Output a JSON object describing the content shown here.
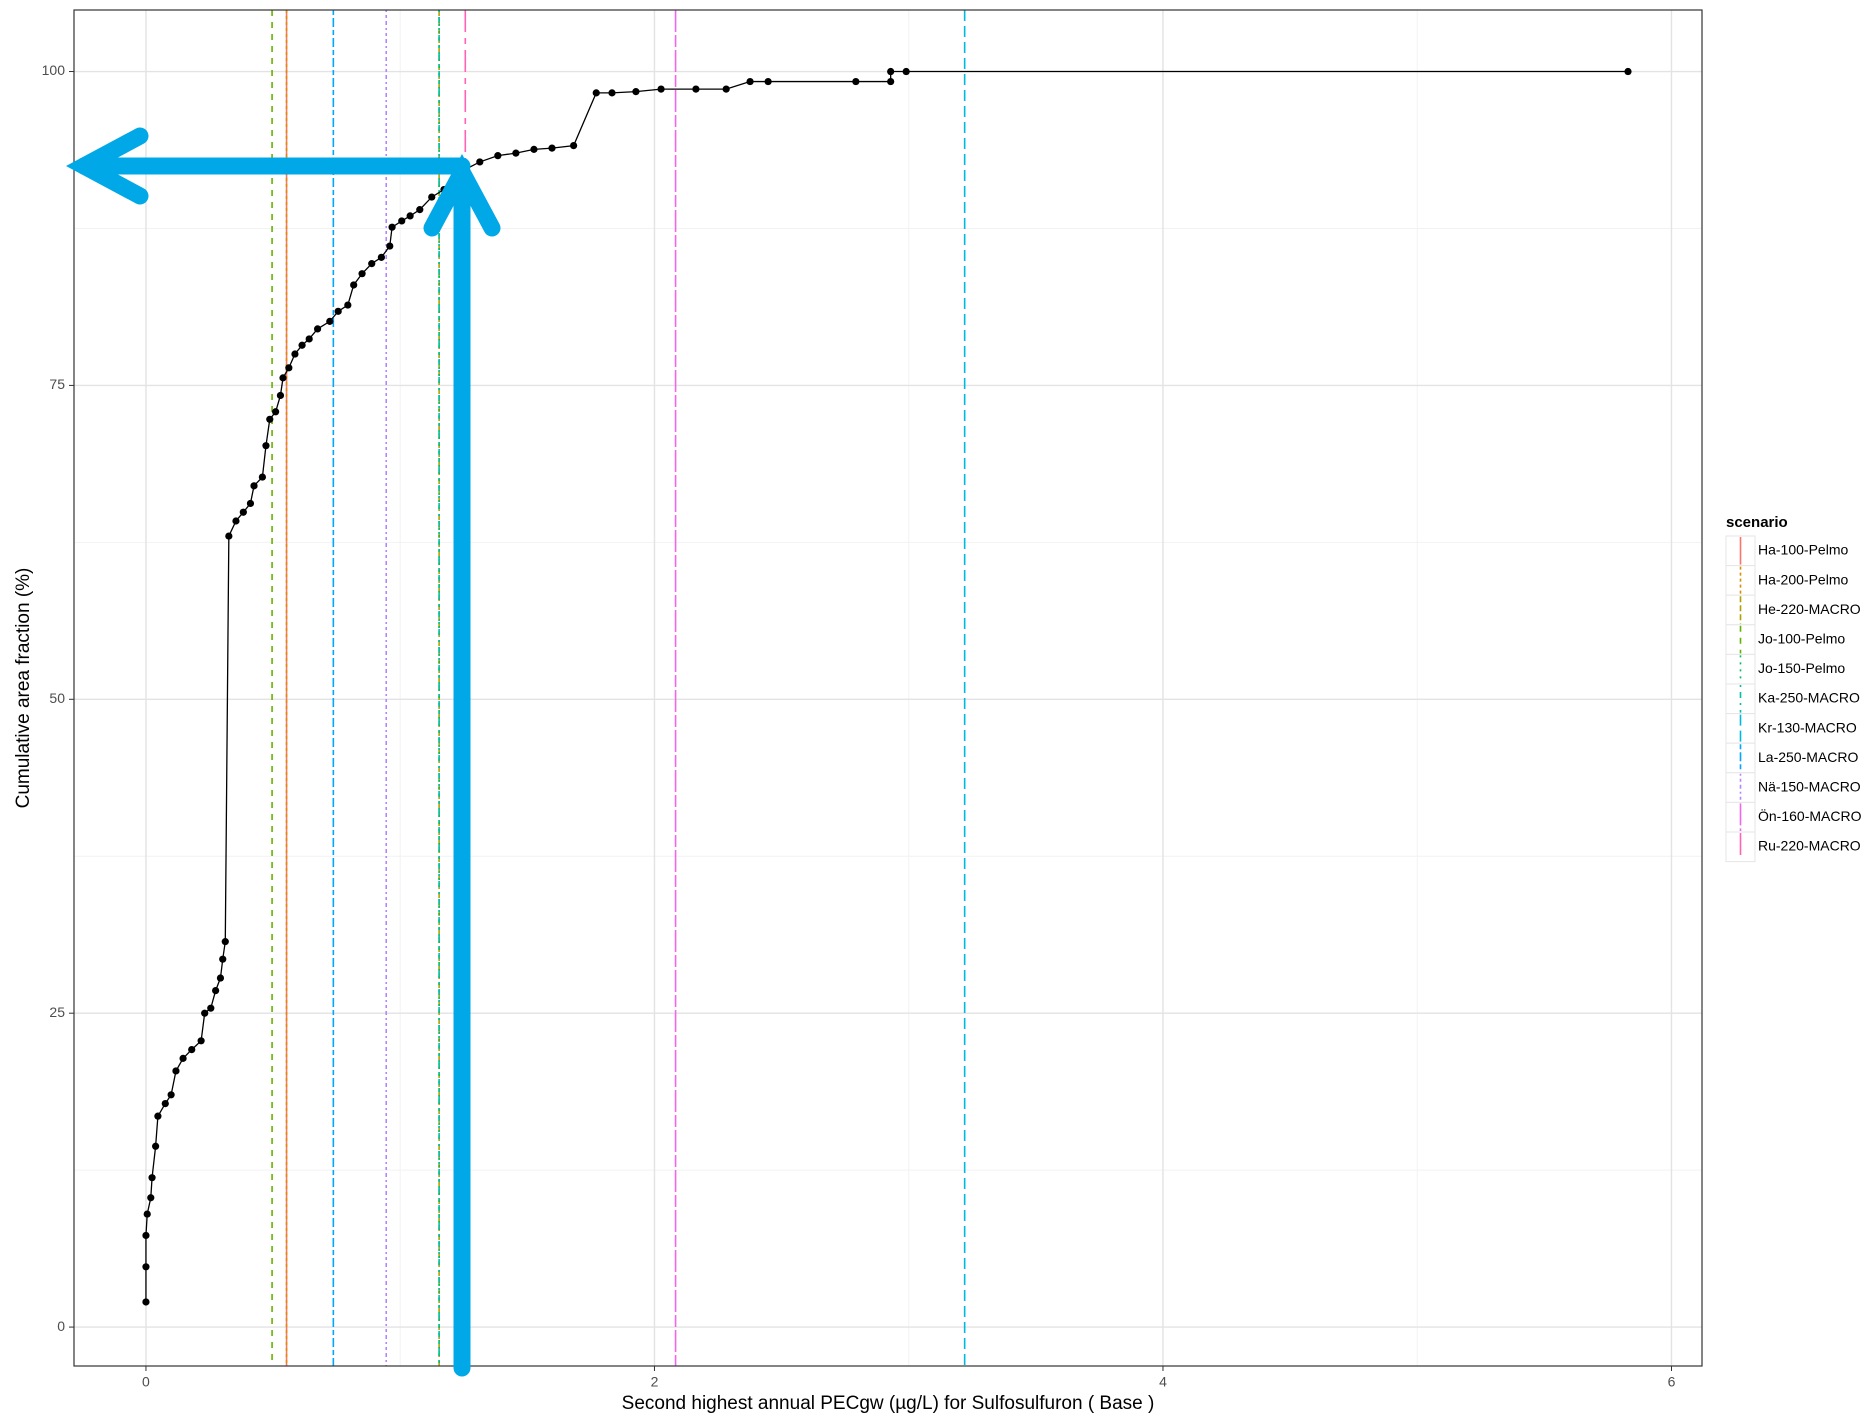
{
  "chart_data": {
    "type": "line",
    "xlabel": "Second highest annual PECgw (µg/L) for Sulfosulfuron ( Base )",
    "ylabel": "Cumulative area fraction (%)",
    "xlim": [
      -0.283,
      6.12
    ],
    "ylim": [
      -3.1,
      104.9
    ],
    "xticks": [
      0,
      2,
      4,
      6
    ],
    "yticks": [
      0,
      25,
      50,
      75,
      100
    ],
    "x_minor_ticks": [
      1,
      3,
      5
    ],
    "y_minor_ticks": [
      12.5,
      37.5,
      62.5,
      87.5
    ],
    "grid": true,
    "color": "#000000",
    "x": [
      0,
      0,
      0,
      0.005,
      0.019,
      0.024,
      0.038,
      0.047,
      0.076,
      0.099,
      0.118,
      0.146,
      0.18,
      0.217,
      0.231,
      0.255,
      0.274,
      0.293,
      0.302,
      0.312,
      0.326,
      0.354,
      0.383,
      0.411,
      0.425,
      0.458,
      0.472,
      0.487,
      0.51,
      0.529,
      0.539,
      0.562,
      0.586,
      0.614,
      0.642,
      0.675,
      0.723,
      0.756,
      0.794,
      0.817,
      0.85,
      0.888,
      0.926,
      0.959,
      0.968,
      1.006,
      1.039,
      1.077,
      1.124,
      1.172,
      1.209,
      1.256,
      1.313,
      1.384,
      1.455,
      1.526,
      1.597,
      1.682,
      1.771,
      1.833,
      1.927,
      2.026,
      2.163,
      2.282,
      2.376,
      2.447,
      2.792,
      2.929,
      2.929,
      2.99,
      5.829
    ],
    "values": [
      2.0,
      4.8,
      7.3,
      9.0,
      10.3,
      11.9,
      14.4,
      16.8,
      17.8,
      18.5,
      20.4,
      21.4,
      22.1,
      22.8,
      25.0,
      25.4,
      26.8,
      27.8,
      29.3,
      30.7,
      63.0,
      64.2,
      64.9,
      65.6,
      67.0,
      67.7,
      70.2,
      72.3,
      72.9,
      74.2,
      75.6,
      76.4,
      77.5,
      78.2,
      78.7,
      79.5,
      80.1,
      80.9,
      81.4,
      83.0,
      83.9,
      84.7,
      85.2,
      86.1,
      87.6,
      88.1,
      88.5,
      89.0,
      90.0,
      90.6,
      91.4,
      92.2,
      92.8,
      93.3,
      93.5,
      93.8,
      93.9,
      94.1,
      98.3,
      98.3,
      98.4,
      98.6,
      98.6,
      98.6,
      99.2,
      99.2,
      99.2,
      99.2,
      100,
      100,
      100
    ],
    "legend_title": "scenario",
    "legend": "right",
    "vlines": [
      {
        "name": "Ha-100-Pelmo",
        "color": "#F8766D",
        "dash": "none",
        "x": 0.553
      },
      {
        "name": "Ha-200-Pelmo",
        "color": "#DB8E00",
        "dash": "3,3",
        "x": 0.553
      },
      {
        "name": "He-220-MACRO",
        "color": "#AEA200",
        "dash": "6,3",
        "x": 1.153
      },
      {
        "name": "Jo-100-Pelmo",
        "color": "#64B200",
        "dash": "6,6",
        "x": 0.496
      },
      {
        "name": "Jo-150-Pelmo",
        "color": "#00BD5C",
        "dash": "2,5",
        "x": 1.153
      },
      {
        "name": "Ka-250-MACRO",
        "color": "#00C1A7",
        "dash": "2,5,6,5",
        "x": 1.153
      },
      {
        "name": "Kr-130-MACRO",
        "color": "#00BADE",
        "dash": "11,5",
        "x": 3.22
      },
      {
        "name": "La-250-MACRO",
        "color": "#00A6FF",
        "dash": "5,3,9,3",
        "x": 0.737
      },
      {
        "name": "Nä-150-MACRO",
        "color": "#B385FF",
        "dash": "2,3,3,3,4,3",
        "x": 0.945
      },
      {
        "name": "Ön-160-MACRO",
        "color": "#EF67EB",
        "dash": "22,3,12,3",
        "x": 2.083
      },
      {
        "name": "Ru-220-MACRO",
        "color": "#FF63B6",
        "dash": "22,6,6,6",
        "x": 1.256
      }
    ]
  }
}
